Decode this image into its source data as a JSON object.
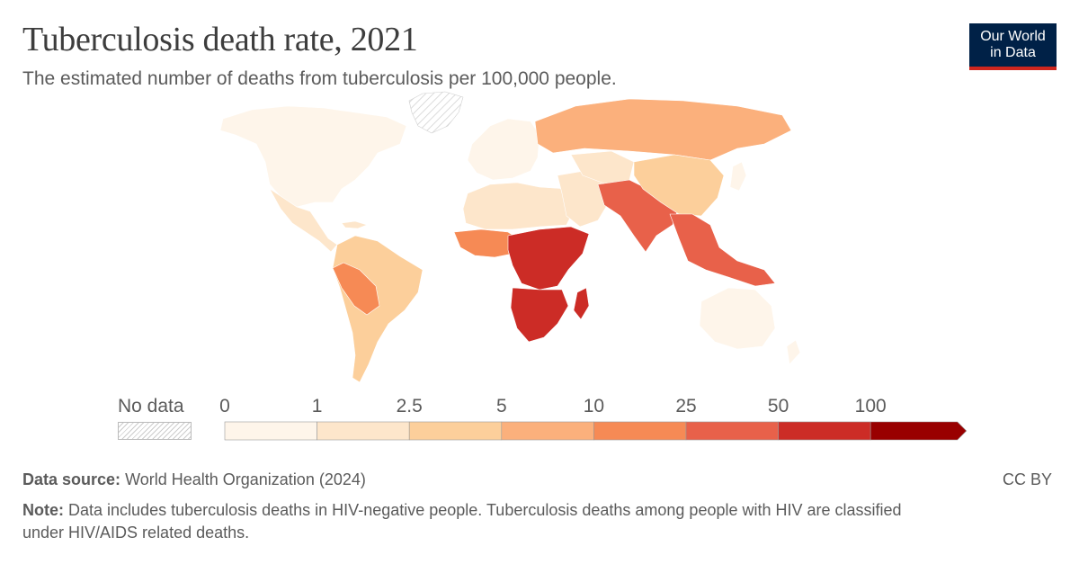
{
  "header": {
    "title": "Tuberculosis death rate, 2021",
    "subtitle": "The estimated number of deaths from tuberculosis per 100,000 people.",
    "logo_line1": "Our World",
    "logo_line2": "in Data"
  },
  "legend": {
    "no_data_label": "No data",
    "ticks": [
      "0",
      "1",
      "2.5",
      "5",
      "10",
      "25",
      "50",
      "100"
    ],
    "colors": [
      "#fef5ea",
      "#fde6cb",
      "#fccf9b",
      "#fbb07c",
      "#f68a55",
      "#e8614a",
      "#cc2c26",
      "#990000"
    ]
  },
  "footer": {
    "source_label": "Data source:",
    "source_text": "World Health Organization (2024)",
    "license": "CC BY",
    "note_label": "Note:",
    "note_text": "Data includes tuberculosis deaths in HIV-negative people. Tuberculosis deaths among people with HIV are classified",
    "note_text_2": "under HIV/AIDS related deaths."
  },
  "map_regions": [
    {
      "name": "greenland",
      "color": "#d9d9d9"
    },
    {
      "name": "north-america",
      "color": "#fef5ea"
    },
    {
      "name": "central-america",
      "color": "#fde6cb"
    },
    {
      "name": "south-america",
      "color": "#fccf9b"
    },
    {
      "name": "peru-bolivia",
      "color": "#f68a55"
    },
    {
      "name": "europe",
      "color": "#fef5ea"
    },
    {
      "name": "russia",
      "color": "#fbb07c"
    },
    {
      "name": "north-africa",
      "color": "#fde6cb"
    },
    {
      "name": "west-africa",
      "color": "#f68a55"
    },
    {
      "name": "central-africa",
      "color": "#cc2c26"
    },
    {
      "name": "southern-africa",
      "color": "#cc2c26"
    },
    {
      "name": "middle-east",
      "color": "#fde6cb"
    },
    {
      "name": "south-asia",
      "color": "#e8614a"
    },
    {
      "name": "china",
      "color": "#fccf9b"
    },
    {
      "name": "southeast-asia",
      "color": "#e8614a"
    },
    {
      "name": "australia",
      "color": "#fef5ea"
    }
  ]
}
